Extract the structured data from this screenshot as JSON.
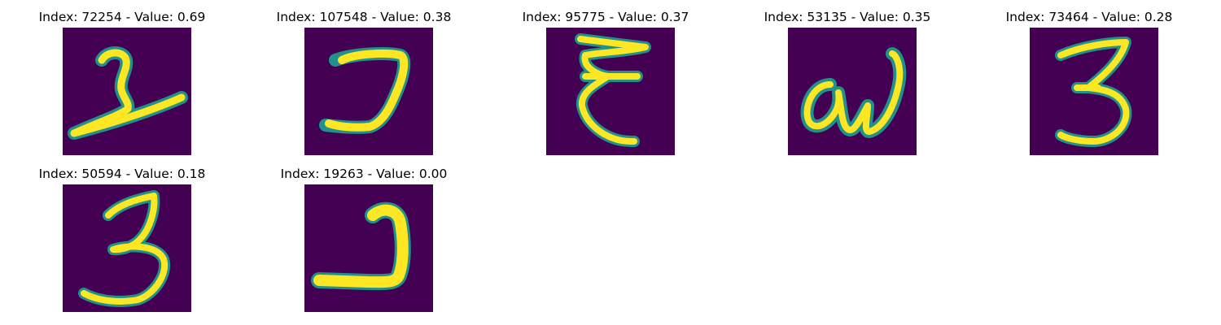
{
  "panels": [
    {
      "title": "Index: 72254 - Value: 0.69",
      "glyph": "glyph-2-slanted"
    },
    {
      "title": "Index: 107548 - Value: 0.38",
      "glyph": "glyph-hook"
    },
    {
      "title": "Index: 95775 - Value: 0.37",
      "glyph": "glyph-epsilon"
    },
    {
      "title": "Index: 53135 - Value: 0.35",
      "glyph": "glyph-aw"
    },
    {
      "title": "Index: 73464 - Value: 0.28",
      "glyph": "glyph-3"
    },
    {
      "title": "Index: 50594 - Value: 0.18",
      "glyph": "glyph-3"
    },
    {
      "title": "Index: 19263 - Value: 0.00",
      "glyph": "glyph-2"
    }
  ],
  "colors": {
    "background": "#440154",
    "stroke": "#fde725",
    "edge": "#21918c"
  }
}
